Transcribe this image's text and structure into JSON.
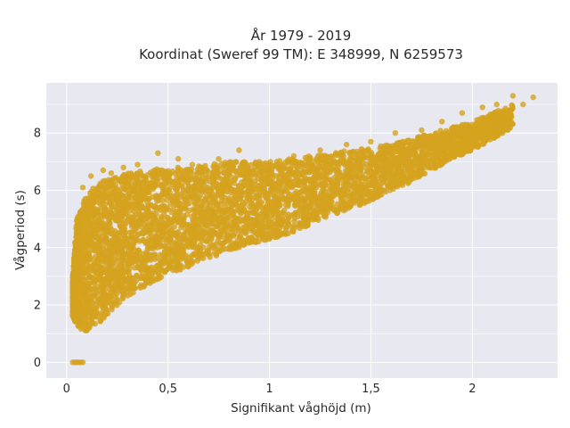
{
  "chart_data": {
    "type": "scatter",
    "title_line1": "År 1979 - 2019",
    "title_line2": "Koordinat (Sweref 99 TM): E 348999, N 6259573",
    "xlabel": "Signifikant våghöjd (m)",
    "ylabel": "Vågperiod (s)",
    "xlim": [
      -0.1,
      2.42
    ],
    "ylim": [
      -0.55,
      9.75
    ],
    "x_ticks": [
      0,
      0.5,
      1,
      1.5,
      2
    ],
    "x_tick_labels": [
      "0",
      "0,5",
      "1",
      "1,5",
      "2"
    ],
    "y_ticks": [
      0,
      2,
      4,
      6,
      8
    ],
    "y_tick_labels": [
      "0",
      "2",
      "4",
      "6",
      "8"
    ],
    "grid": true,
    "plot_bgcolor": "#e8e8f0",
    "marker_color": "#d4a21e",
    "marker_opacity": 0.8,
    "band_envelope": {
      "x": [
        0.03,
        0.05,
        0.08,
        0.1,
        0.15,
        0.2,
        0.25,
        0.3,
        0.4,
        0.5,
        0.6,
        0.7,
        0.8,
        0.9,
        1.0,
        1.1,
        1.2,
        1.3,
        1.4,
        1.5,
        1.6,
        1.7,
        1.8,
        1.9,
        2.0,
        2.1,
        2.2
      ],
      "y_low": [
        1.6,
        1.3,
        1.1,
        1.1,
        1.3,
        1.6,
        2.0,
        2.3,
        2.7,
        3.1,
        3.3,
        3.6,
        3.9,
        4.1,
        4.3,
        4.5,
        4.8,
        5.1,
        5.4,
        5.6,
        6.0,
        6.3,
        6.7,
        7.1,
        7.4,
        7.8,
        8.2
      ],
      "y_high": [
        3.0,
        5.0,
        5.6,
        5.9,
        6.2,
        6.4,
        6.5,
        6.6,
        6.7,
        6.8,
        6.8,
        6.9,
        7.0,
        7.0,
        7.0,
        7.1,
        7.2,
        7.3,
        7.4,
        7.5,
        7.6,
        7.8,
        8.0,
        8.2,
        8.4,
        8.7,
        9.0
      ]
    },
    "zero_period_points": {
      "x": [
        0.03,
        0.04,
        0.05,
        0.06,
        0.07,
        0.08
      ],
      "y": [
        0,
        0,
        0,
        0,
        0,
        0
      ]
    },
    "outlier_points": {
      "x": [
        0.08,
        0.12,
        0.18,
        0.22,
        0.28,
        0.35,
        0.45,
        0.55,
        0.62,
        0.75,
        0.85,
        0.95,
        1.12,
        1.25,
        1.38,
        1.5,
        1.62,
        1.75,
        1.85,
        1.95,
        2.05,
        2.12,
        2.2,
        2.25,
        2.3
      ],
      "y": [
        6.1,
        6.5,
        6.7,
        6.6,
        6.8,
        6.9,
        7.3,
        7.1,
        6.9,
        7.1,
        7.4,
        7.0,
        7.2,
        7.4,
        7.6,
        7.7,
        8.0,
        8.1,
        8.4,
        8.7,
        8.9,
        9.0,
        9.3,
        9.0,
        9.25
      ]
    }
  }
}
